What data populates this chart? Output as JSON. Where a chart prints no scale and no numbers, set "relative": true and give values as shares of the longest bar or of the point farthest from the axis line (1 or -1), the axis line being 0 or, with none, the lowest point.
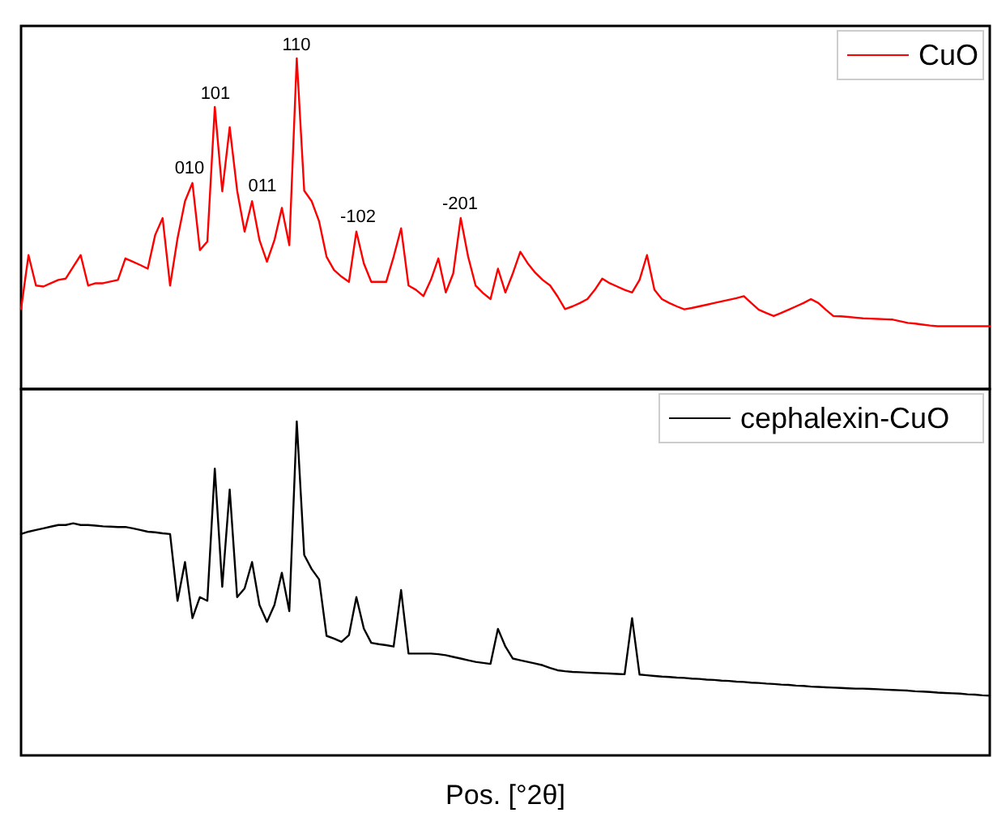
{
  "chart_data": [
    {
      "type": "line",
      "relative": true,
      "legend": "top right",
      "categories": [
        null,
        null,
        null,
        null,
        null,
        null,
        null,
        null,
        null,
        null,
        null,
        null,
        null,
        null,
        null,
        null,
        null,
        null,
        null,
        null,
        null,
        null,
        null,
        null,
        null,
        null,
        null,
        null,
        null,
        null,
        null,
        null,
        null,
        null,
        null,
        null,
        null,
        null,
        null,
        null,
        null,
        null,
        null,
        null,
        null,
        null,
        null,
        null,
        null,
        null,
        null,
        null,
        null,
        null,
        null,
        null,
        null,
        null,
        null,
        null,
        null,
        null,
        null,
        null,
        null,
        null,
        null,
        null,
        null,
        null,
        null,
        null,
        null,
        null,
        null,
        null,
        null,
        null,
        null,
        null,
        null,
        null,
        null,
        null,
        null,
        null,
        null,
        null,
        null,
        null,
        null,
        null,
        null,
        null,
        null,
        null,
        null,
        null,
        null,
        null,
        null,
        null,
        null,
        null,
        null,
        null,
        null,
        null,
        null,
        null,
        null,
        null,
        null,
        null,
        null,
        null,
        null,
        null,
        null,
        null,
        null,
        null,
        null,
        null,
        null,
        null,
        null,
        null,
        null,
        null,
        null
      ],
      "series": [
        {
          "name": "CuO",
          "color": "#ff0000",
          "values": [
            0.242,
            0.405,
            0.313,
            0.31,
            0.32,
            0.33,
            0.334,
            0.37,
            0.405,
            0.313,
            0.32,
            0.32,
            0.325,
            0.33,
            0.395,
            0.385,
            0.375,
            0.364,
            0.466,
            0.517,
            0.313,
            0.456,
            0.568,
            0.623,
            0.42,
            0.446,
            0.853,
            0.598,
            0.792,
            0.6,
            0.476,
            0.568,
            0.45,
            0.385,
            0.45,
            0.548,
            0.435,
            1.0,
            0.6,
            0.568,
            0.507,
            0.4,
            0.36,
            0.34,
            0.324,
            0.476,
            0.38,
            0.324,
            0.324,
            0.324,
            0.4,
            0.486,
            0.313,
            0.3,
            0.281,
            0.33,
            0.395,
            0.292,
            0.35,
            0.517,
            0.4,
            0.313,
            0.29,
            0.272,
            0.364,
            0.292,
            0.35,
            0.415,
            0.38,
            0.352,
            0.33,
            0.313,
            0.28,
            0.242,
            0.25,
            0.26,
            0.272,
            0.3,
            0.334,
            0.32,
            0.31,
            0.3,
            0.292,
            0.33,
            0.405,
            0.3,
            0.272,
            0.26,
            0.25,
            0.241,
            0.245,
            0.25,
            0.255,
            0.26,
            0.265,
            0.27,
            0.275,
            0.281,
            0.26,
            0.24,
            0.23,
            0.221,
            0.23,
            0.24,
            0.25,
            0.26,
            0.272,
            0.26,
            0.24,
            0.221,
            0.22,
            0.218,
            0.216,
            0.214,
            0.213,
            0.212,
            0.211,
            0.21,
            0.205,
            0.2,
            0.198,
            0.195,
            0.192,
            0.19,
            0.19,
            0.19,
            0.19,
            0.19,
            0.19,
            0.19,
            0.19
          ]
        }
      ],
      "annotations": [
        "010",
        "101",
        "011",
        "110",
        "-102",
        "-201"
      ]
    },
    {
      "type": "line",
      "relative": true,
      "legend": "top right",
      "xlabel": "Pos. [°2θ]",
      "categories": [
        null,
        null,
        null,
        null,
        null,
        null,
        null,
        null,
        null,
        null,
        null,
        null,
        null,
        null,
        null,
        null,
        null,
        null,
        null,
        null,
        null,
        null,
        null,
        null,
        null,
        null,
        null,
        null,
        null,
        null,
        null,
        null,
        null,
        null,
        null,
        null,
        null,
        null,
        null,
        null,
        null,
        null,
        null,
        null,
        null,
        null,
        null,
        null,
        null,
        null,
        null,
        null,
        null,
        null,
        null,
        null,
        null,
        null,
        null,
        null,
        null,
        null,
        null,
        null,
        null,
        null,
        null,
        null,
        null,
        null,
        null,
        null,
        null,
        null,
        null,
        null,
        null,
        null,
        null,
        null,
        null,
        null,
        null,
        null,
        null,
        null,
        null,
        null,
        null,
        null,
        null,
        null,
        null,
        null,
        null,
        null,
        null,
        null,
        null,
        null,
        null,
        null,
        null,
        null,
        null,
        null,
        null,
        null,
        null,
        null,
        null,
        null,
        null,
        null,
        null,
        null,
        null,
        null,
        null,
        null,
        null,
        null,
        null,
        null,
        null,
        null,
        null,
        null,
        null,
        null,
        null
      ],
      "series": [
        {
          "name": "cephalexin-CuO",
          "color": "#000000",
          "values": [
            0.663,
            0.67,
            0.675,
            0.68,
            0.685,
            0.69,
            0.69,
            0.695,
            0.69,
            0.69,
            0.688,
            0.686,
            0.685,
            0.684,
            0.684,
            0.68,
            0.675,
            0.67,
            0.668,
            0.665,
            0.663,
            0.463,
            0.579,
            0.411,
            0.474,
            0.463,
            0.859,
            0.505,
            0.796,
            0.474,
            0.5,
            0.579,
            0.45,
            0.4,
            0.45,
            0.547,
            0.432,
            1.0,
            0.6,
            0.558,
            0.527,
            0.358,
            0.35,
            0.34,
            0.36,
            0.474,
            0.38,
            0.337,
            0.333,
            0.33,
            0.326,
            0.495,
            0.305,
            0.305,
            0.305,
            0.305,
            0.303,
            0.3,
            0.295,
            0.29,
            0.285,
            0.28,
            0.277,
            0.274,
            0.379,
            0.326,
            0.29,
            0.285,
            0.28,
            0.275,
            0.27,
            0.262,
            0.255,
            0.252,
            0.25,
            0.249,
            0.248,
            0.247,
            0.246,
            0.245,
            0.244,
            0.243,
            0.411,
            0.242,
            0.24,
            0.238,
            0.236,
            0.235,
            0.233,
            0.232,
            0.23,
            0.229,
            0.227,
            0.226,
            0.224,
            0.223,
            0.221,
            0.22,
            0.218,
            0.217,
            0.215,
            0.214,
            0.212,
            0.211,
            0.209,
            0.208,
            0.206,
            0.205,
            0.204,
            0.203,
            0.202,
            0.201,
            0.2,
            0.2,
            0.199,
            0.198,
            0.197,
            0.196,
            0.195,
            0.194,
            0.192,
            0.191,
            0.19,
            0.188,
            0.187,
            0.186,
            0.185,
            0.183,
            0.182,
            0.18,
            0.179
          ]
        }
      ]
    }
  ]
}
